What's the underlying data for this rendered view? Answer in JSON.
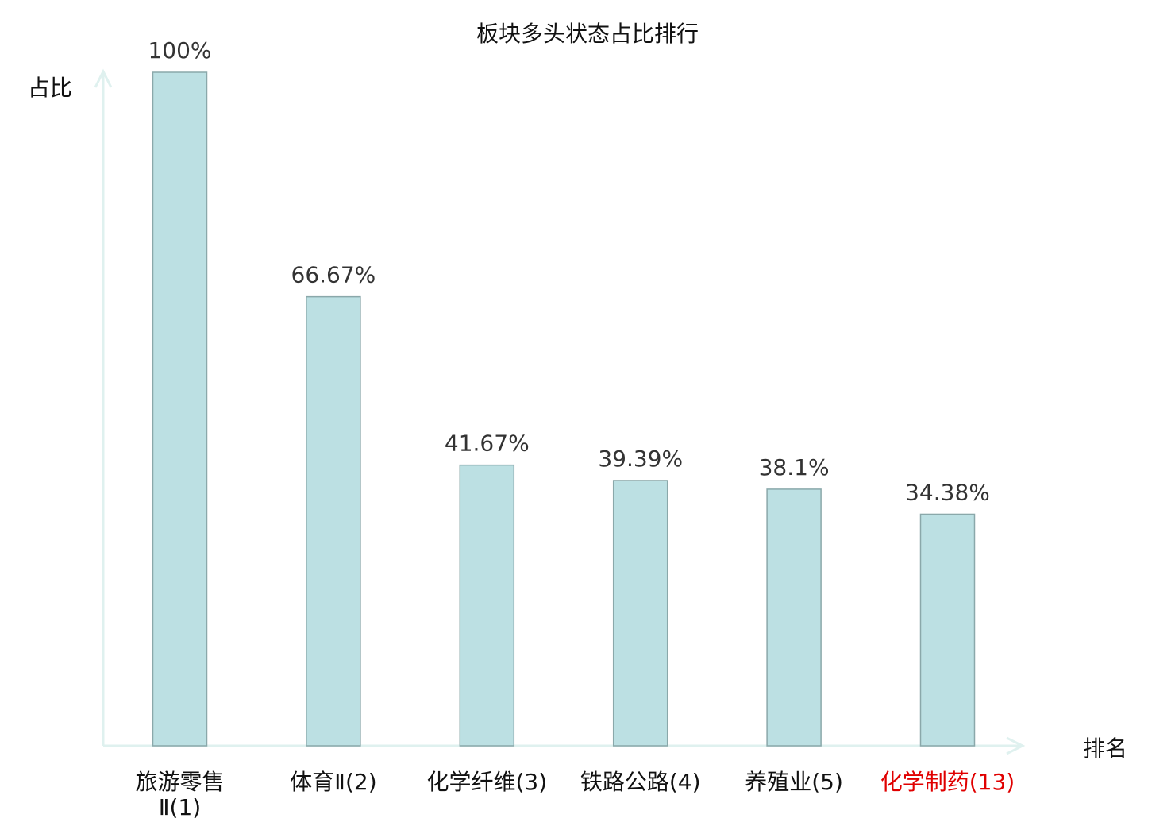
{
  "chart_data": {
    "type": "bar",
    "title": "板块多头状态占比排行",
    "xlabel": "排名",
    "ylabel": "占比",
    "categories": [
      "旅游零售Ⅱ(1)",
      "体育Ⅱ(2)",
      "化学纤维(3)",
      "铁路公路(4)",
      "养殖业(5)",
      "化学制药(13)"
    ],
    "category_lines": [
      [
        "旅游零售",
        "Ⅱ(1)"
      ],
      [
        "体育Ⅱ(2)"
      ],
      [
        "化学纤维(3)"
      ],
      [
        "铁路公路(4)"
      ],
      [
        "养殖业(5)"
      ],
      [
        "化学制药(13)"
      ]
    ],
    "values": [
      100,
      66.67,
      41.67,
      39.39,
      38.1,
      34.38
    ],
    "value_labels": [
      "100%",
      "66.67%",
      "41.67%",
      "39.39%",
      "38.1%",
      "34.38%"
    ],
    "highlight_index": 5,
    "ylim": [
      0,
      100
    ],
    "grid": false,
    "colors": {
      "bar_fill": "#bce0e3",
      "bar_stroke": "#8aa8aa",
      "axis": "#dff1ef",
      "highlight_text": "#e00000",
      "text": "#111111",
      "value_text": "#333333"
    }
  }
}
